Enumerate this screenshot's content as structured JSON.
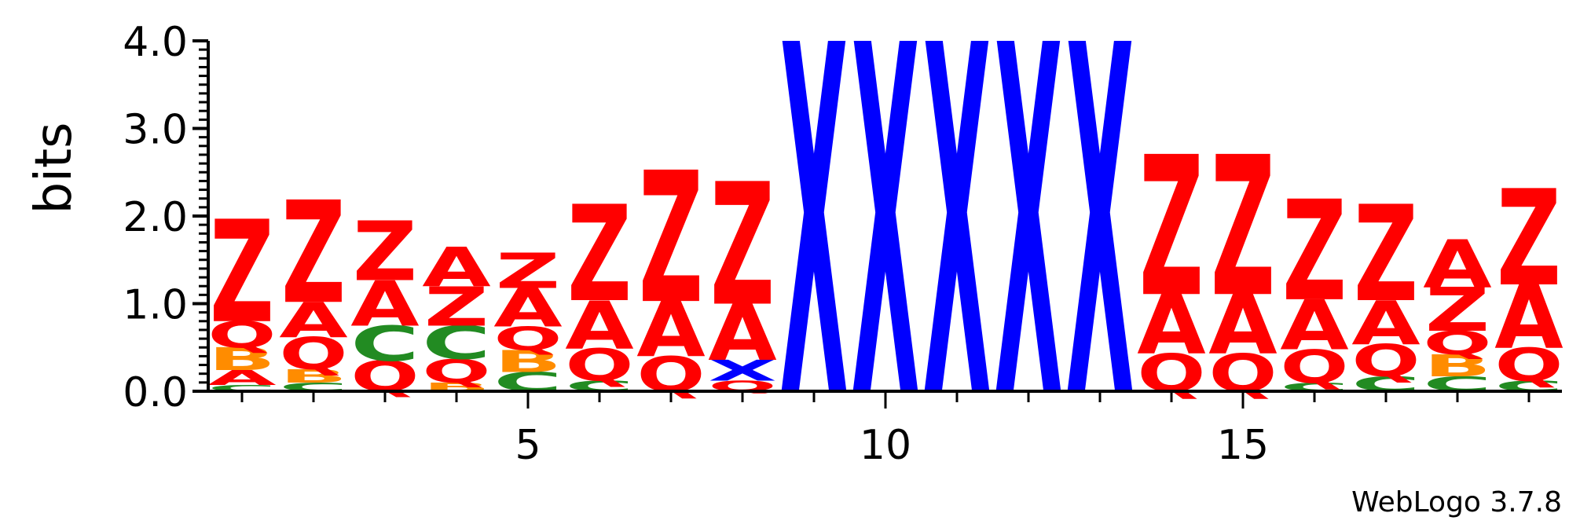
{
  "chart_data": {
    "type": "sequence-logo",
    "ylabel": "bits",
    "ylim": [
      0,
      4.0
    ],
    "yticks": [
      "0.0",
      "1.0",
      "2.0",
      "3.0",
      "4.0"
    ],
    "xticks": [
      5,
      10,
      15
    ],
    "footer": "WebLogo 3.7.8",
    "colors": {
      "Z": "#ff0000",
      "A": "#ff0000",
      "Q": "#ff0000",
      "B": "#ff8c00",
      "C": "#228b22",
      "X": "#0000ff"
    },
    "positions": [
      {
        "pos": 1,
        "stack": [
          [
            "C",
            0.07
          ],
          [
            "A",
            0.17
          ],
          [
            "B",
            0.26
          ],
          [
            "Q",
            0.3
          ],
          [
            "Z",
            1.17
          ]
        ]
      },
      {
        "pos": 2,
        "stack": [
          [
            "C",
            0.1
          ],
          [
            "B",
            0.15
          ],
          [
            "Q",
            0.37
          ],
          [
            "A",
            0.4
          ],
          [
            "Z",
            1.17
          ]
        ]
      },
      {
        "pos": 3,
        "stack": [
          [
            "Q",
            0.35
          ],
          [
            "C",
            0.4
          ],
          [
            "A",
            0.52
          ],
          [
            "Z",
            0.68
          ]
        ]
      },
      {
        "pos": 4,
        "stack": [
          [
            "B",
            0.1
          ],
          [
            "Q",
            0.27
          ],
          [
            "C",
            0.38
          ],
          [
            "Z",
            0.45
          ],
          [
            "A",
            0.45
          ]
        ]
      },
      {
        "pos": 5,
        "stack": [
          [
            "C",
            0.22
          ],
          [
            "B",
            0.25
          ],
          [
            "Q",
            0.27
          ],
          [
            "A",
            0.44
          ],
          [
            "Z",
            0.4
          ]
        ]
      },
      {
        "pos": 6,
        "stack": [
          [
            "C",
            0.12
          ],
          [
            "Q",
            0.37
          ],
          [
            "A",
            0.55
          ],
          [
            "Z",
            1.1
          ]
        ]
      },
      {
        "pos": 7,
        "stack": [
          [
            "Q",
            0.4
          ],
          [
            "A",
            0.63
          ],
          [
            "Z",
            1.5
          ]
        ]
      },
      {
        "pos": 8,
        "stack": [
          [
            "Q",
            0.12
          ],
          [
            "X",
            0.24
          ],
          [
            "A",
            0.64
          ],
          [
            "Z",
            1.4
          ]
        ]
      },
      {
        "pos": 9,
        "stack": [
          [
            "X",
            4.0
          ]
        ]
      },
      {
        "pos": 10,
        "stack": [
          [
            "X",
            4.0
          ]
        ]
      },
      {
        "pos": 11,
        "stack": [
          [
            "X",
            4.0
          ]
        ]
      },
      {
        "pos": 12,
        "stack": [
          [
            "X",
            4.0
          ]
        ]
      },
      {
        "pos": 13,
        "stack": [
          [
            "X",
            4.0
          ]
        ]
      },
      {
        "pos": 14,
        "stack": [
          [
            "Q",
            0.43
          ],
          [
            "A",
            0.68
          ],
          [
            "Z",
            1.6
          ]
        ]
      },
      {
        "pos": 15,
        "stack": [
          [
            "Q",
            0.43
          ],
          [
            "A",
            0.68
          ],
          [
            "Z",
            1.6
          ]
        ]
      },
      {
        "pos": 16,
        "stack": [
          [
            "C",
            0.1
          ],
          [
            "Q",
            0.38
          ],
          [
            "A",
            0.57
          ],
          [
            "Z",
            1.15
          ]
        ]
      },
      {
        "pos": 17,
        "stack": [
          [
            "C",
            0.17
          ],
          [
            "Q",
            0.37
          ],
          [
            "A",
            0.5
          ],
          [
            "Z",
            1.1
          ]
        ]
      },
      {
        "pos": 18,
        "stack": [
          [
            "C",
            0.17
          ],
          [
            "B",
            0.25
          ],
          [
            "Q",
            0.27
          ],
          [
            "Z",
            0.5
          ],
          [
            "A",
            0.55
          ]
        ]
      },
      {
        "pos": 19,
        "stack": [
          [
            "C",
            0.12
          ],
          [
            "Q",
            0.38
          ],
          [
            "A",
            0.72
          ],
          [
            "Z",
            1.1
          ]
        ]
      }
    ]
  }
}
